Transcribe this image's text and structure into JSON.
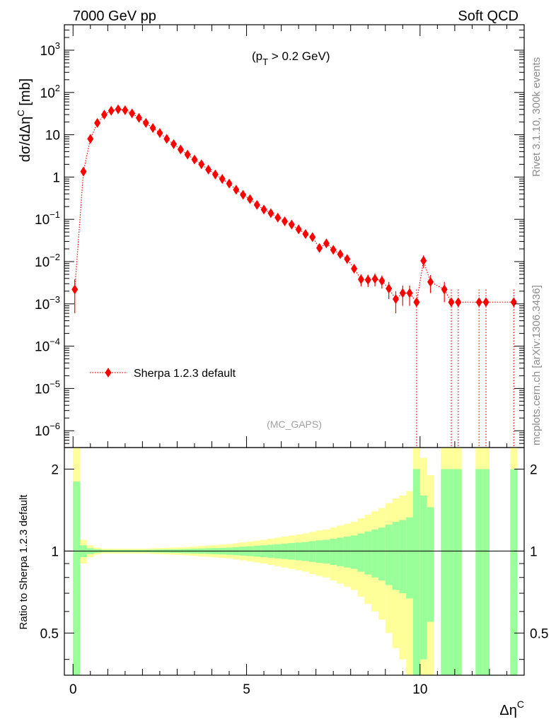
{
  "header": {
    "left": "7000 GeV pp",
    "right": "Soft QCD"
  },
  "side_text": {
    "top": "Rivet 3.1.10,  300k events",
    "bottom": "mcplots.cern.ch [arXiv:1306.3436]"
  },
  "annotation": {
    "cut_base": "(p",
    "cut_sub": "T",
    "cut_rest": " > 0.2 GeV)",
    "analysis": "(MC_GAPS)"
  },
  "colors": {
    "series": "#ff0000",
    "band_outer": "#ffff99",
    "band_inner": "#99ff99",
    "frame": "#000000"
  },
  "chart_data": [
    {
      "type": "scatter",
      "ylabel": "dσ/dΔη^C [mb]",
      "yscale": "log",
      "ylim": [
        4e-07,
        4000
      ],
      "xlim": [
        -0.25,
        13.0
      ],
      "y_ticklabels": [
        "10^-6",
        "10^-5",
        "10^-4",
        "10^-3",
        "10^-2",
        "10^-1",
        "1",
        "10",
        "10^2",
        "10^3"
      ],
      "legend_position": "bottom-left",
      "series": [
        {
          "name": "Sherpa 1.2.3 default",
          "marker": "diamond",
          "line": "dotted",
          "x": [
            0.05,
            0.3,
            0.5,
            0.7,
            0.9,
            1.1,
            1.3,
            1.5,
            1.7,
            1.9,
            2.1,
            2.3,
            2.5,
            2.7,
            2.9,
            3.1,
            3.3,
            3.5,
            3.7,
            3.9,
            4.1,
            4.3,
            4.5,
            4.7,
            4.9,
            5.1,
            5.3,
            5.5,
            5.7,
            5.9,
            6.1,
            6.3,
            6.5,
            6.7,
            6.9,
            7.1,
            7.3,
            7.5,
            7.7,
            7.9,
            8.1,
            8.3,
            8.5,
            8.7,
            8.9,
            9.1,
            9.3,
            9.5,
            9.7,
            9.9,
            10.1,
            10.3,
            10.7,
            10.9,
            11.1,
            11.7,
            11.9,
            12.7
          ],
          "y": [
            0.0022,
            1.35,
            8.0,
            19.0,
            30.0,
            37.0,
            40.0,
            38.0,
            32.0,
            25.0,
            19.0,
            14.5,
            11.0,
            8.0,
            6.0,
            4.5,
            3.4,
            2.6,
            2.0,
            1.5,
            1.15,
            0.9,
            0.7,
            0.5,
            0.38,
            0.3,
            0.22,
            0.17,
            0.14,
            0.11,
            0.09,
            0.075,
            0.058,
            0.045,
            0.038,
            0.021,
            0.027,
            0.019,
            0.015,
            0.0115,
            0.0068,
            0.0038,
            0.0037,
            0.0039,
            0.0035,
            0.0023,
            0.0013,
            0.0018,
            0.0018,
            0.0011,
            0.0105,
            0.0033,
            0.0022,
            0.0011,
            0.0011,
            0.0011,
            0.0011,
            0.0011
          ],
          "yerr_low": [
            0.0016,
            0.06,
            0.2,
            0.3,
            0.4,
            0.4,
            0.4,
            0.4,
            0.3,
            0.3,
            0.2,
            0.2,
            0.15,
            0.1,
            0.08,
            0.06,
            0.05,
            0.04,
            0.03,
            0.025,
            0.02,
            0.02,
            0.016,
            0.013,
            0.011,
            0.009,
            0.007,
            0.006,
            0.005,
            0.004,
            0.0035,
            0.003,
            0.0026,
            0.0022,
            0.002,
            0.0014,
            0.0017,
            0.0013,
            0.0011,
            0.0009,
            0.0007,
            0.0012,
            0.0012,
            0.0013,
            0.0012,
            0.001,
            0.0007,
            0.0009,
            0.0009,
            0.0011,
            0.0035,
            0.0015,
            0.0011,
            0.0011,
            0.0011,
            0.0011,
            0.0011,
            0.0011
          ],
          "yerr_high": [
            0.0016,
            0.06,
            0.2,
            0.3,
            0.4,
            0.4,
            0.4,
            0.4,
            0.3,
            0.3,
            0.2,
            0.2,
            0.15,
            0.1,
            0.08,
            0.06,
            0.05,
            0.04,
            0.03,
            0.025,
            0.02,
            0.02,
            0.016,
            0.013,
            0.011,
            0.009,
            0.007,
            0.006,
            0.005,
            0.004,
            0.0035,
            0.003,
            0.0026,
            0.0022,
            0.002,
            0.0014,
            0.0017,
            0.0013,
            0.0011,
            0.0009,
            0.0007,
            0.0012,
            0.0012,
            0.0013,
            0.0012,
            0.001,
            0.0007,
            0.0009,
            0.0009,
            0.0011,
            0.0035,
            0.0015,
            0.0011,
            0.0011,
            0.0011,
            0.0011,
            0.0011,
            0.0011
          ],
          "drop_to_bottom_x": [
            9.9,
            10.9,
            11.1,
            11.7,
            11.9,
            12.7
          ]
        }
      ]
    },
    {
      "type": "area",
      "xlabel": "Δη^C",
      "ylabel": "Ratio to Sherpa 1.2.3 default",
      "ylim": [
        0.35,
        2.4
      ],
      "y_ticklabels": [
        "0.5",
        "1",
        "2"
      ],
      "x_ticklabels": [
        "0",
        "5",
        "10"
      ],
      "reference_line": 1.0,
      "bins": {
        "left": [
          0.0,
          0.2,
          0.4,
          0.6,
          0.8,
          1.0,
          1.2,
          1.4,
          1.6,
          1.8,
          2.0,
          2.2,
          2.4,
          2.6,
          2.8,
          3.0,
          3.2,
          3.4,
          3.6,
          3.8,
          4.0,
          4.2,
          4.4,
          4.6,
          4.8,
          5.0,
          5.2,
          5.4,
          5.6,
          5.8,
          6.0,
          6.2,
          6.4,
          6.6,
          6.8,
          7.0,
          7.2,
          7.4,
          7.6,
          7.8,
          8.0,
          8.2,
          8.4,
          8.6,
          8.8,
          9.0,
          9.2,
          9.4,
          9.6,
          9.8,
          10.0,
          10.2,
          10.6,
          10.8,
          11.0,
          11.6,
          11.8,
          12.6
        ],
        "right": [
          0.2,
          0.4,
          0.6,
          0.8,
          1.0,
          1.2,
          1.4,
          1.6,
          1.8,
          2.0,
          2.2,
          2.4,
          2.6,
          2.8,
          3.0,
          3.2,
          3.4,
          3.6,
          3.8,
          4.0,
          4.2,
          4.4,
          4.6,
          4.8,
          5.0,
          5.2,
          5.4,
          5.6,
          5.8,
          6.0,
          6.2,
          6.4,
          6.6,
          6.8,
          7.0,
          7.2,
          7.4,
          7.6,
          7.8,
          8.0,
          8.2,
          8.4,
          8.6,
          8.8,
          9.0,
          9.2,
          9.4,
          9.6,
          9.8,
          10.0,
          10.2,
          10.4,
          10.8,
          11.0,
          11.2,
          11.8,
          12.0,
          12.8
        ],
        "inner_err": [
          0.8,
          0.05,
          0.025,
          0.015,
          0.01,
          0.01,
          0.01,
          0.01,
          0.01,
          0.01,
          0.01,
          0.012,
          0.013,
          0.014,
          0.015,
          0.016,
          0.018,
          0.02,
          0.022,
          0.024,
          0.026,
          0.028,
          0.03,
          0.034,
          0.038,
          0.042,
          0.046,
          0.05,
          0.055,
          0.06,
          0.065,
          0.07,
          0.075,
          0.08,
          0.088,
          0.095,
          0.1,
          0.11,
          0.12,
          0.13,
          0.14,
          0.16,
          0.18,
          0.2,
          0.22,
          0.25,
          0.28,
          0.3,
          0.33,
          1.0,
          0.6,
          0.45,
          1.0,
          1.0,
          1.0,
          1.0,
          1.0,
          1.0
        ],
        "outer_err": [
          1.6,
          0.1,
          0.05,
          0.03,
          0.02,
          0.02,
          0.02,
          0.02,
          0.02,
          0.02,
          0.02,
          0.024,
          0.026,
          0.028,
          0.03,
          0.032,
          0.036,
          0.04,
          0.044,
          0.048,
          0.052,
          0.056,
          0.06,
          0.068,
          0.076,
          0.084,
          0.092,
          0.1,
          0.11,
          0.12,
          0.13,
          0.14,
          0.15,
          0.16,
          0.176,
          0.19,
          0.2,
          0.22,
          0.24,
          0.26,
          0.28,
          0.32,
          0.36,
          0.4,
          0.44,
          0.5,
          0.56,
          0.6,
          0.66,
          2.0,
          1.2,
          0.9,
          2.0,
          2.0,
          2.0,
          2.0,
          2.0,
          2.0
        ]
      }
    }
  ]
}
